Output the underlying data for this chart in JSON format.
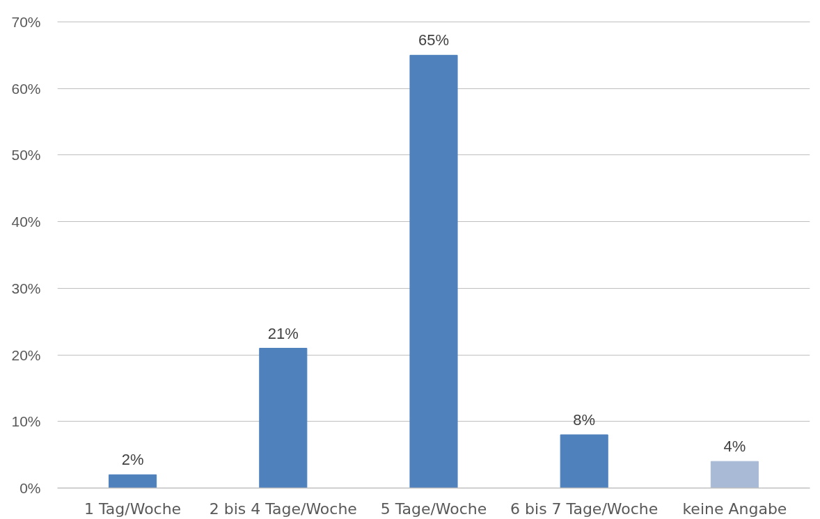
{
  "chart_data": {
    "type": "bar",
    "categories": [
      "1 Tag/Woche",
      "2 bis 4 Tage/Woche",
      "5 Tage/Woche",
      "6 bis 7 Tage/Woche",
      "keine Angabe"
    ],
    "values": [
      2,
      21,
      65,
      8,
      4
    ],
    "colors": [
      "#4f81bd",
      "#4f81bd",
      "#4f81bd",
      "#4f81bd",
      "#a9bad6"
    ],
    "value_labels": [
      "2%",
      "21%",
      "65%",
      "8%",
      "4%"
    ],
    "ylim": [
      0,
      70
    ],
    "yticks": [
      {
        "value": 0,
        "label": "0%"
      },
      {
        "value": 10,
        "label": "10%"
      },
      {
        "value": 20,
        "label": "20%"
      },
      {
        "value": 30,
        "label": "30%"
      },
      {
        "value": 40,
        "label": "40%"
      },
      {
        "value": 50,
        "label": "50%"
      },
      {
        "value": 60,
        "label": "60%"
      },
      {
        "value": 70,
        "label": "70%"
      }
    ],
    "grid": "y"
  }
}
